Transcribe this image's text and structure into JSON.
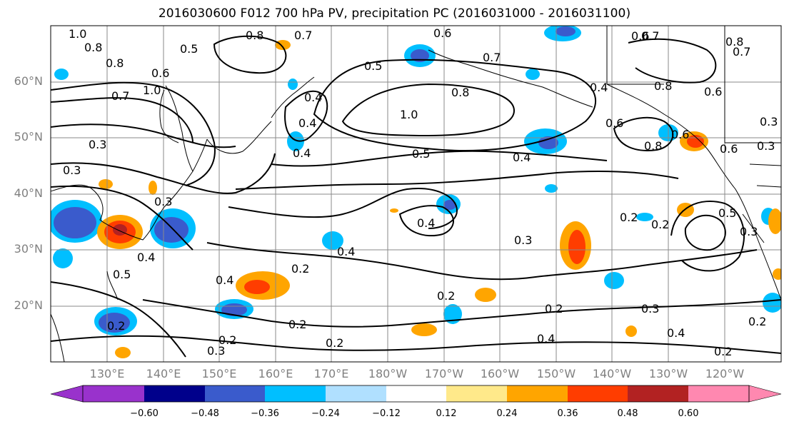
{
  "title": "2016030600 F012 700 hPa PV, precipitation PC (2016031000 - 2016031100)",
  "lat_labels": [
    "60°N",
    "50°N",
    "40°N",
    "30°N",
    "20°N"
  ],
  "lon_labels": [
    "130°E",
    "140°E",
    "150°E",
    "160°E",
    "170°E",
    "180°W",
    "170°W",
    "160°W",
    "150°W",
    "140°W",
    "130°W",
    "120°W"
  ],
  "colorbar": {
    "colors": [
      "#9932cc",
      "#00008b",
      "#3a5bcc",
      "#00bfff",
      "#b0e0ff",
      "#ffffff",
      "#ffe98a",
      "#ffa500",
      "#ff3d00",
      "#b22222",
      "#ff88b0"
    ],
    "extend_low_color": "#9932cc",
    "extend_high_color": "#ff88b0",
    "tick_labels": [
      "−0.60",
      "−0.48",
      "−0.36",
      "−0.24",
      "−0.12",
      "0.12",
      "0.24",
      "0.36",
      "0.48",
      "0.60"
    ]
  },
  "contour_labels": [
    "1.0",
    "0.8",
    "0.5",
    "0.8",
    "0.7",
    "0.8",
    "0.6",
    "0.7",
    "0.5",
    "1.0",
    "0.6",
    "0.7",
    "0.8",
    "0.4",
    "0.4",
    "0.4",
    "0.5",
    "0.4",
    "1.0",
    "0.8",
    "0.4",
    "0.6",
    "0.8",
    "0.6",
    "0.3",
    "0.3",
    "0.3",
    "0.4",
    "0.4",
    "0.5",
    "0.3",
    "0.4",
    "0.4",
    "0.3",
    "0.2",
    "0.2",
    "0.2",
    "0.2",
    "0.3",
    "0.2",
    "0.2",
    "0.4",
    "0.4",
    "0.2",
    "0.3",
    "0.2",
    "0.2",
    "0.2",
    "0.6",
    "0.7",
    "0.8",
    "0.7",
    "0.6",
    "0.6",
    "0.5",
    "0.3",
    "0.2",
    "0.3"
  ]
}
